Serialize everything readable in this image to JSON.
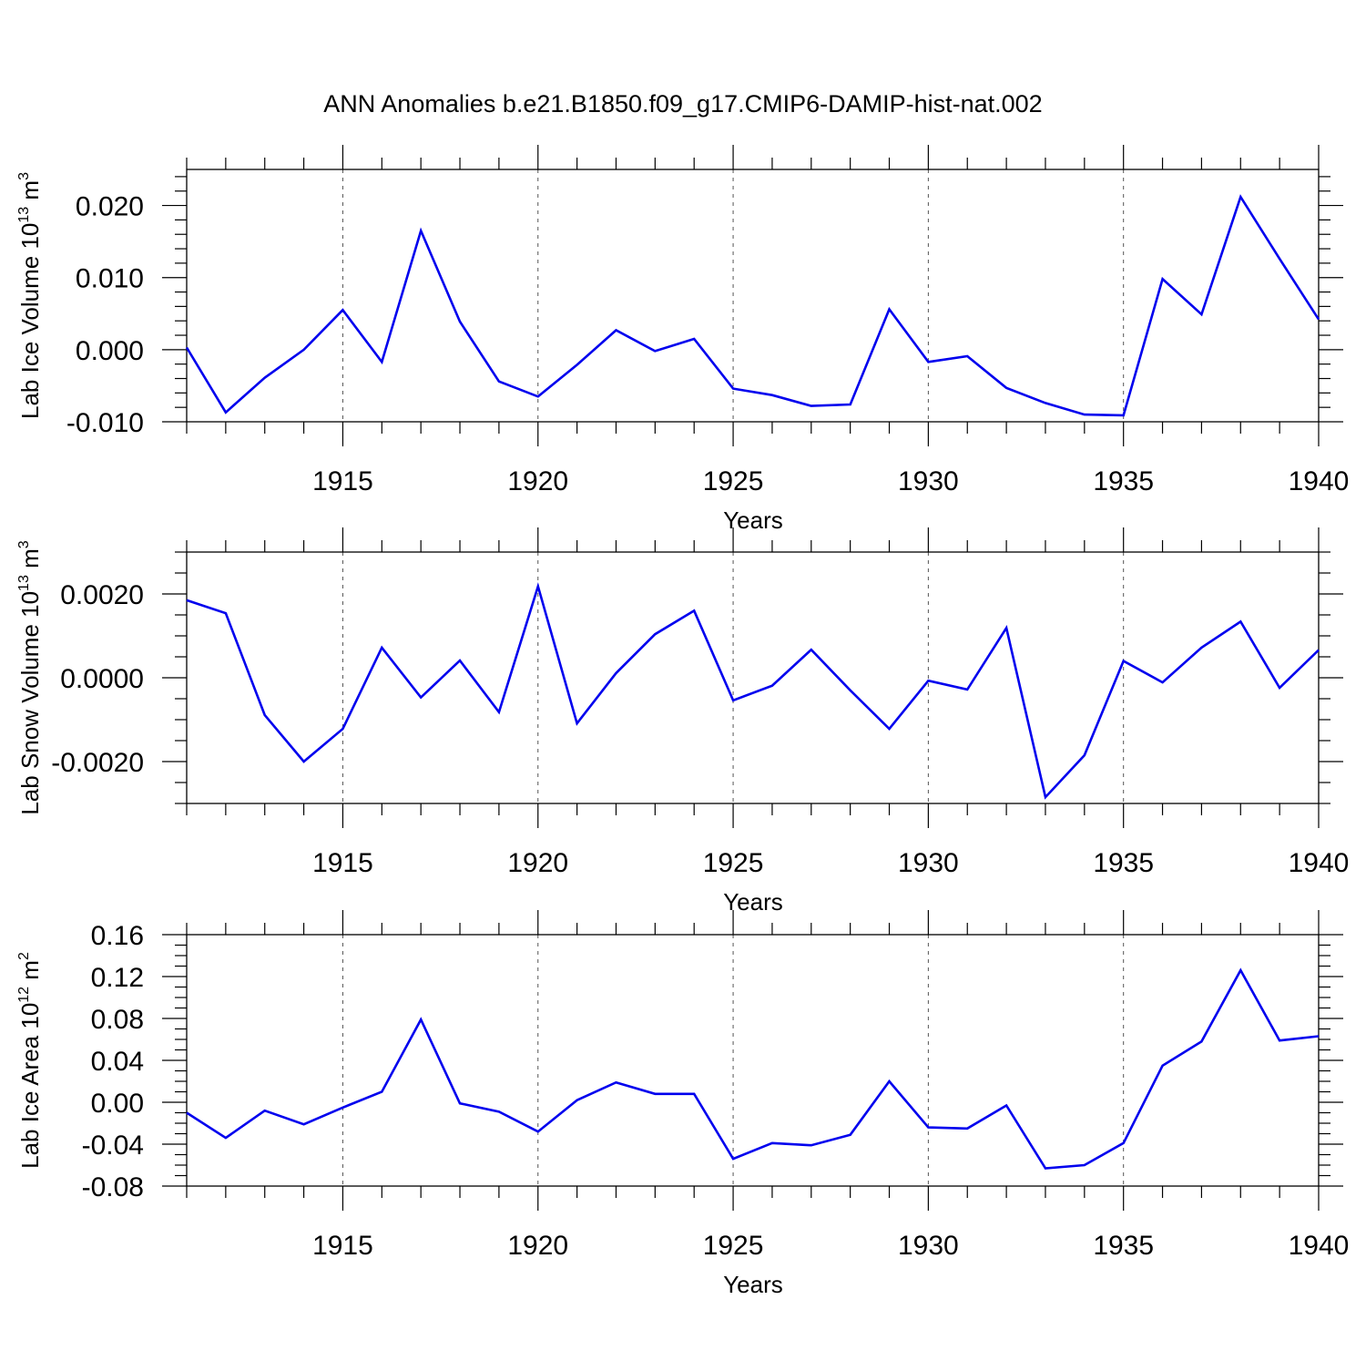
{
  "title": "ANN Anomalies b.e21.B1850.f09_g17.CMIP6-DAMIP-hist-nat.002",
  "colors": {
    "line": "#0000ee",
    "axis": "#000000",
    "grid": "#555555"
  },
  "chart_data": [
    {
      "type": "line",
      "title": "",
      "xlabel": "Years",
      "ylabel": {
        "main": "Lab Ice Volume 10",
        "sup": "13",
        "unit": " m",
        "unit_sup": "3"
      },
      "xlim": [
        1911,
        1940
      ],
      "ylim": [
        -0.01,
        0.025
      ],
      "xticks": [
        1915,
        1920,
        1925,
        1930,
        1935,
        1940
      ],
      "xtick_labels": [
        "1915",
        "1920",
        "1925",
        "1930",
        "1935",
        "1940"
      ],
      "yticks": [
        -0.01,
        0.0,
        0.01,
        0.02
      ],
      "ytick_labels": [
        "-0.010",
        "0.000",
        "0.010",
        "0.020"
      ],
      "y_minor_step": 0.002,
      "grid": "vertical dashed at major x ticks",
      "x": [
        1911,
        1912,
        1913,
        1914,
        1915,
        1916,
        1917,
        1918,
        1919,
        1920,
        1921,
        1922,
        1923,
        1924,
        1925,
        1926,
        1927,
        1928,
        1929,
        1930,
        1931,
        1932,
        1933,
        1934,
        1935,
        1936,
        1937,
        1938,
        1939,
        1940
      ],
      "series": [
        {
          "values": [
            0.0003,
            -0.0087,
            -0.0039,
            0.0,
            0.0055,
            -0.0017,
            0.0165,
            0.0039,
            -0.0044,
            -0.0065,
            -0.0021,
            0.0027,
            -0.0002,
            0.0015,
            -0.0054,
            -0.0063,
            -0.0078,
            -0.0076,
            0.0056,
            -0.0017,
            -0.0009,
            -0.0053,
            -0.0074,
            -0.009,
            -0.0091,
            0.0098,
            0.0049,
            0.0212,
            0.0126,
            0.0042
          ]
        }
      ]
    },
    {
      "type": "line",
      "title": "",
      "xlabel": "Years",
      "ylabel": {
        "main": "Lab Snow Volume 10",
        "sup": "13",
        "unit": " m",
        "unit_sup": "3"
      },
      "xlim": [
        1911,
        1940
      ],
      "ylim": [
        -0.003,
        0.003
      ],
      "xticks": [
        1915,
        1920,
        1925,
        1930,
        1935,
        1940
      ],
      "xtick_labels": [
        "1915",
        "1920",
        "1925",
        "1930",
        "1935",
        "1940"
      ],
      "yticks": [
        -0.002,
        0.0,
        0.002
      ],
      "ytick_labels": [
        "-0.0020",
        "0.0000",
        "0.0020"
      ],
      "y_minor_step": 0.0005,
      "grid": "vertical dashed at major x ticks",
      "x": [
        1911,
        1912,
        1913,
        1914,
        1915,
        1916,
        1917,
        1918,
        1919,
        1920,
        1921,
        1922,
        1923,
        1924,
        1925,
        1926,
        1927,
        1928,
        1929,
        1930,
        1931,
        1932,
        1933,
        1934,
        1935,
        1936,
        1937,
        1938,
        1939,
        1940
      ],
      "series": [
        {
          "values": [
            0.00185,
            0.00154,
            -0.00089,
            -0.002,
            -0.00122,
            0.00072,
            -0.00047,
            0.00041,
            -0.00082,
            0.00218,
            -0.00109,
            0.00011,
            0.00104,
            0.0016,
            -0.00054,
            -0.00019,
            0.00067,
            -0.0003,
            -0.00122,
            -7e-05,
            -0.00028,
            0.00119,
            -0.00285,
            -0.00185,
            0.0004,
            -0.00011,
            0.00072,
            0.00134,
            -0.00024,
            0.00066
          ]
        }
      ]
    },
    {
      "type": "line",
      "title": "",
      "xlabel": "Years",
      "ylabel": {
        "main": "Lab Ice Area 10",
        "sup": "12",
        "unit": " m",
        "unit_sup": "2"
      },
      "xlim": [
        1911,
        1940
      ],
      "ylim": [
        -0.08,
        0.16
      ],
      "xticks": [
        1915,
        1920,
        1925,
        1930,
        1935,
        1940
      ],
      "xtick_labels": [
        "1915",
        "1920",
        "1925",
        "1930",
        "1935",
        "1940"
      ],
      "yticks": [
        -0.08,
        -0.04,
        0.0,
        0.04,
        0.08,
        0.12,
        0.16
      ],
      "ytick_labels": [
        "-0.08",
        "-0.04",
        "0.00",
        "0.04",
        "0.08",
        "0.12",
        "0.16"
      ],
      "y_minor_step": 0.01,
      "grid": "vertical dashed at major x ticks",
      "x": [
        1911,
        1912,
        1913,
        1914,
        1915,
        1916,
        1917,
        1918,
        1919,
        1920,
        1921,
        1922,
        1923,
        1924,
        1925,
        1926,
        1927,
        1928,
        1929,
        1930,
        1931,
        1932,
        1933,
        1934,
        1935,
        1936,
        1937,
        1938,
        1939,
        1940
      ],
      "series": [
        {
          "values": [
            -0.01,
            -0.034,
            -0.008,
            -0.021,
            -0.005,
            0.01,
            0.079,
            -0.001,
            -0.009,
            -0.028,
            0.002,
            0.019,
            0.008,
            0.008,
            -0.054,
            -0.039,
            -0.041,
            -0.031,
            0.02,
            -0.024,
            -0.025,
            -0.003,
            -0.063,
            -0.06,
            -0.039,
            0.035,
            0.058,
            0.126,
            0.059,
            0.063
          ]
        }
      ]
    }
  ]
}
